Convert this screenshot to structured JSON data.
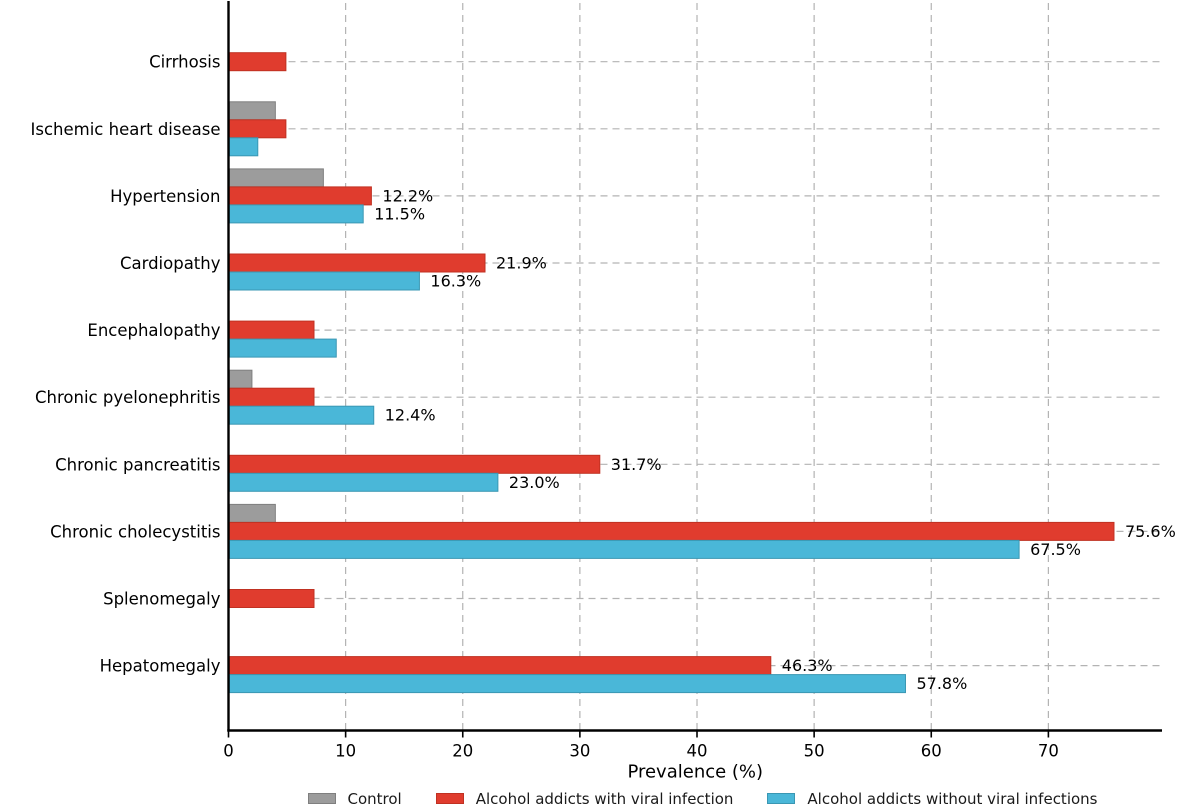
{
  "chart_data": {
    "type": "bar",
    "orientation": "horizontal",
    "title": "",
    "xlabel": "Prevalence (%)",
    "ylabel": "",
    "xlim": [
      0,
      79.7
    ],
    "xticks": [
      0,
      10,
      20,
      30,
      40,
      50,
      60,
      70
    ],
    "grid": "dashed vertical at each x tick and dashed horizontal at each category center",
    "legend_position": "bottom center",
    "categories_top_to_bottom": [
      "Cirrhosis",
      "Ischemic heart disease",
      "Hypertension",
      "Cardiopathy",
      "Encephalopathy",
      "Chronic pyelonephritis",
      "Chronic pancreatitis",
      "Chronic cholecystitis",
      "Splenomegaly",
      "Hepatomegaly"
    ],
    "series": [
      {
        "name": "Control",
        "color": "#9c9c9c",
        "edge_color": "#7f7f7f",
        "values": [
          null,
          4.0,
          8.1,
          null,
          null,
          2.0,
          null,
          4.0,
          null,
          null
        ],
        "labels": [
          null,
          null,
          null,
          null,
          null,
          null,
          null,
          null,
          null,
          null
        ]
      },
      {
        "name": "Alcohol addicts with viral infection",
        "color": "#e03c2e",
        "edge_color": "#c03122",
        "values": [
          4.9,
          4.9,
          12.2,
          21.9,
          7.3,
          7.3,
          31.7,
          75.6,
          7.3,
          46.3
        ],
        "labels": [
          null,
          null,
          "12.2%",
          "21.9%",
          null,
          null,
          "31.7%",
          "75.6%",
          null,
          "46.3%"
        ]
      },
      {
        "name": "Alcohol addicts without viral infections",
        "color": "#4ab7d8",
        "edge_color": "#3a97b3",
        "values": [
          null,
          2.5,
          11.5,
          16.3,
          9.2,
          12.4,
          23.0,
          67.5,
          null,
          57.8
        ],
        "labels": [
          null,
          null,
          "11.5%",
          "16.3%",
          null,
          "12.4%",
          "23.0%",
          "67.5%",
          null,
          "57.8%"
        ]
      }
    ],
    "axis_color": "#000000",
    "grid_color": "#b3b3b3",
    "text_color": "#000000"
  }
}
